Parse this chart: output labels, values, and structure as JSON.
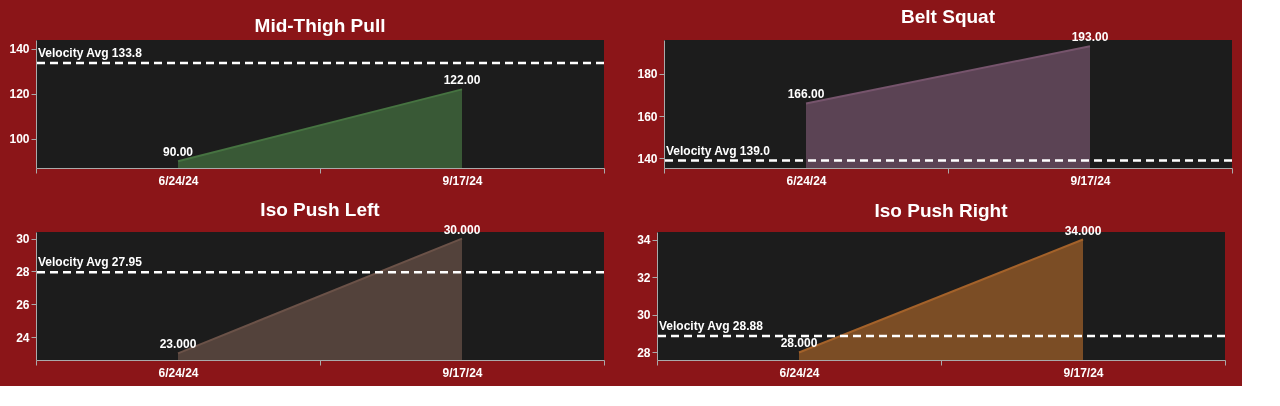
{
  "chart_data": [
    {
      "type": "area",
      "title": "Mid-Thigh Pull",
      "categories": [
        "6/24/24",
        "9/17/24"
      ],
      "values": [
        90,
        122
      ],
      "value_labels": [
        "90.00",
        "122.00"
      ],
      "color": "#467341",
      "ylim": [
        87,
        144
      ],
      "yticks": [
        100,
        120,
        140
      ],
      "grid": false,
      "ref_lines": [
        {
          "axis": "y",
          "value": 133.8,
          "label": "Velocity Avg 133.8",
          "color": "#ffffff",
          "line_style": "dashed"
        }
      ]
    },
    {
      "type": "area",
      "title": "Belt Squat",
      "categories": [
        "6/24/24",
        "9/17/24"
      ],
      "values": [
        166,
        193
      ],
      "value_labels": [
        "166.00",
        "193.00"
      ],
      "color": "#76546c",
      "ylim": [
        135.5,
        196
      ],
      "yticks": [
        140,
        160,
        180
      ],
      "grid": false,
      "ref_lines": [
        {
          "axis": "y",
          "value": 139.0,
          "label": "Velocity Avg 139.0",
          "color": "#ffffff",
          "line_style": "dashed"
        }
      ]
    },
    {
      "type": "area",
      "title": "Iso Push Left",
      "categories": [
        "6/24/24",
        "9/17/24"
      ],
      "values": [
        23,
        30
      ],
      "value_labels": [
        "23.000",
        "30.000"
      ],
      "color": "#6b5248",
      "ylim": [
        22.6,
        30.4
      ],
      "yticks": [
        24,
        26,
        28,
        30
      ],
      "grid": false,
      "ref_lines": [
        {
          "axis": "y",
          "value": 27.95,
          "label": "Velocity Avg 27.95",
          "color": "#ffffff",
          "line_style": "dashed"
        }
      ]
    },
    {
      "type": "area",
      "title": "Iso Push Right",
      "categories": [
        "6/24/24",
        "9/17/24"
      ],
      "values": [
        28,
        34
      ],
      "value_labels": [
        "28.000",
        "34.000"
      ],
      "color": "#a4622a",
      "ylim": [
        27.6,
        34.4
      ],
      "yticks": [
        28,
        30,
        32,
        34
      ],
      "grid": false,
      "ref_lines": [
        {
          "axis": "y",
          "value": 28.88,
          "label": "Velocity Avg 28.88",
          "color": "#ffffff",
          "line_style": "dashed"
        }
      ]
    }
  ]
}
